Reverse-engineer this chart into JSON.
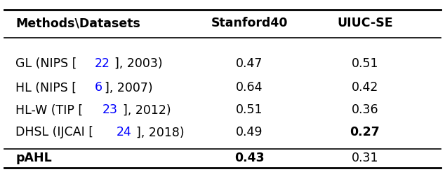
{
  "header": [
    "Methods\\Datasets",
    "Stanford40",
    "UIUC-SE"
  ],
  "rows": [
    {
      "method_parts": [
        [
          "GL (NIPS [",
          "black"
        ],
        [
          "22",
          "blue"
        ],
        [
          "], 2003)",
          "black"
        ]
      ],
      "stanford40": "0.47",
      "uiuc_se": "0.51",
      "s40_bold": false,
      "uiuc_bold": false,
      "row_bold": false
    },
    {
      "method_parts": [
        [
          "HL (NIPS [",
          "black"
        ],
        [
          "6",
          "blue"
        ],
        [
          "], 2007)",
          "black"
        ]
      ],
      "stanford40": "0.64",
      "uiuc_se": "0.42",
      "s40_bold": false,
      "uiuc_bold": false,
      "row_bold": false
    },
    {
      "method_parts": [
        [
          "HL-W (TIP [",
          "black"
        ],
        [
          "23",
          "blue"
        ],
        [
          "], 2012)",
          "black"
        ]
      ],
      "stanford40": "0.51",
      "uiuc_se": "0.36",
      "s40_bold": false,
      "uiuc_bold": false,
      "row_bold": false
    },
    {
      "method_parts": [
        [
          "DHSL (IJCAI [",
          "black"
        ],
        [
          "24",
          "blue"
        ],
        [
          "], 2018)",
          "black"
        ]
      ],
      "stanford40": "0.49",
      "uiuc_se": "0.27",
      "s40_bold": false,
      "uiuc_bold": true,
      "row_bold": false
    },
    {
      "method_parts": [
        [
          "pAHL",
          "black"
        ]
      ],
      "stanford40": "0.43",
      "uiuc_se": "0.31",
      "s40_bold": true,
      "uiuc_bold": false,
      "row_bold": true
    }
  ],
  "background_color": "#ffffff",
  "text_color": "#000000",
  "figsize": [
    6.34,
    2.46
  ],
  "dpi": 100,
  "fontsize": 12.5
}
